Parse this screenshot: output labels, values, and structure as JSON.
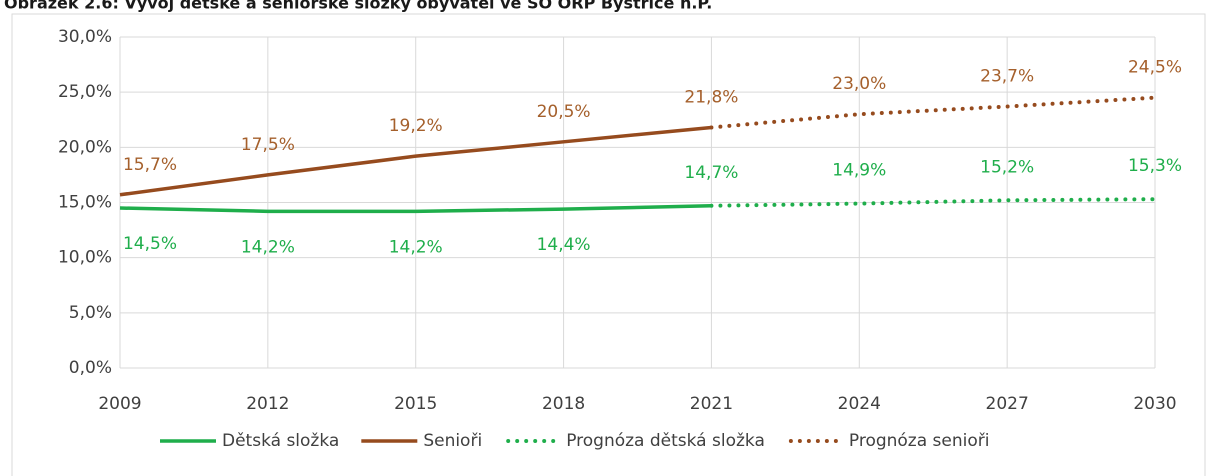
{
  "chart_data": {
    "type": "line",
    "title": "Obrázek 2.6: Vývoj dětské a seniorské složky obyvatel ve SO ORP Bystřice n.P.",
    "xlim": [
      2009,
      2030
    ],
    "xticks": [
      2009,
      2012,
      2015,
      2018,
      2021,
      2024,
      2027,
      2030
    ],
    "ylim": [
      0,
      30
    ],
    "yticks": [
      {
        "value": 0,
        "label": "0,0%"
      },
      {
        "value": 5,
        "label": "5,0%"
      },
      {
        "value": 10,
        "label": "10,0%"
      },
      {
        "value": 15,
        "label": "15,0%"
      },
      {
        "value": 20,
        "label": "20,0%"
      },
      {
        "value": 25,
        "label": "25,0%"
      },
      {
        "value": 30,
        "label": "30,0%"
      }
    ],
    "grid": true,
    "legend": "bottom",
    "series": [
      {
        "name": "Dětská složka",
        "color": "#1fae4b",
        "style": "solid",
        "x": [
          2009,
          2012,
          2015,
          2018,
          2021
        ],
        "values": [
          14.5,
          14.2,
          14.2,
          14.4,
          14.7
        ],
        "value_labels": [
          "14,5%",
          "14,2%",
          "14,2%",
          "14,4%",
          "14,7%"
        ]
      },
      {
        "name": "Senioři",
        "color": "#964b1e",
        "style": "solid",
        "x": [
          2009,
          2012,
          2015,
          2018,
          2021
        ],
        "values": [
          15.7,
          17.5,
          19.2,
          20.5,
          21.8
        ],
        "value_labels": [
          "15,7%",
          "17,5%",
          "19,2%",
          "20,5%",
          "21,8%"
        ]
      },
      {
        "name": "Prognóza dětská složka",
        "color": "#1fae4b",
        "style": "dotted",
        "x": [
          2021,
          2024,
          2027,
          2030
        ],
        "values": [
          14.7,
          14.9,
          15.2,
          15.3
        ],
        "value_labels": [
          null,
          "14,9%",
          "15,2%",
          "15,3%"
        ]
      },
      {
        "name": "Prognóza senioři",
        "color": "#964b1e",
        "style": "dotted",
        "x": [
          2021,
          2024,
          2027,
          2030
        ],
        "values": [
          21.8,
          23.0,
          23.7,
          24.5
        ],
        "value_labels": [
          null,
          "23,0%",
          "23,7%",
          "24,5%"
        ]
      }
    ]
  }
}
